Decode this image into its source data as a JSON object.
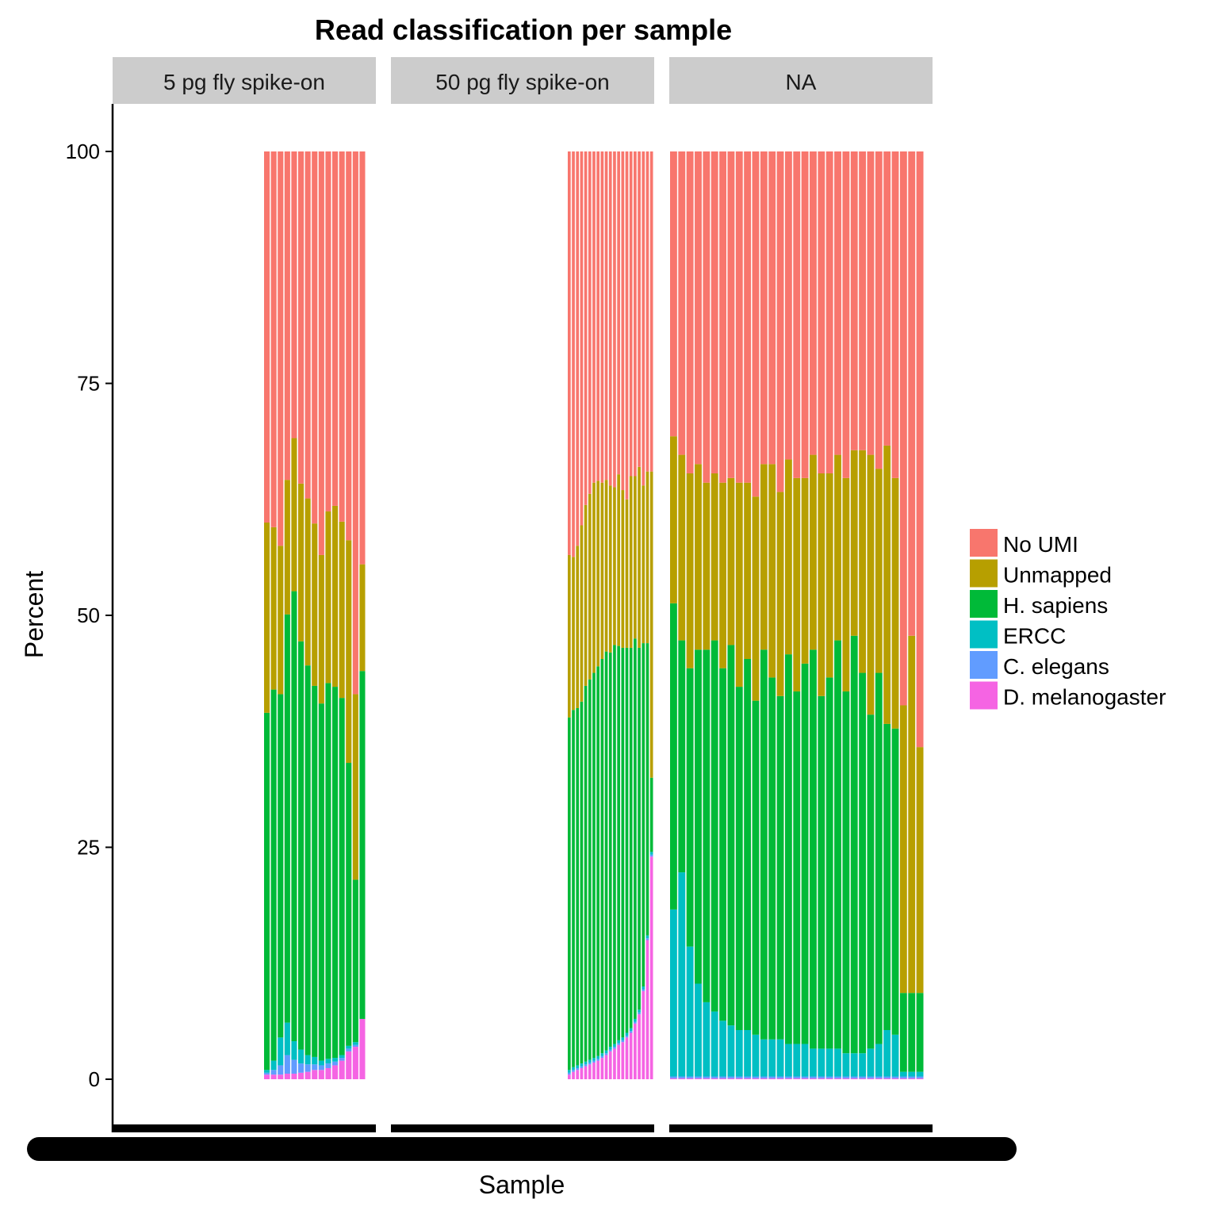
{
  "chart_data": {
    "type": "bar",
    "stacked": true,
    "title": "Read classification per sample",
    "xlabel": "Sample",
    "ylabel": "Percent",
    "ylim": [
      0,
      100
    ],
    "yticks": [
      0,
      25,
      50,
      75,
      100
    ],
    "grid": false,
    "legend_position": "right",
    "legend_title": "",
    "x_tick_labels_note": "overlapping, unreadable",
    "categories_stack_order": [
      "D. melanogaster",
      "C. elegans",
      "ERCC",
      "H. sapiens",
      "Unmapped",
      "No UMI"
    ],
    "legend": [
      {
        "name": "No UMI",
        "color": "#F8766D"
      },
      {
        "name": "Unmapped",
        "color": "#B79F00"
      },
      {
        "name": "H. sapiens",
        "color": "#00BA38"
      },
      {
        "name": "ERCC",
        "color": "#00BFC4"
      },
      {
        "name": "C. elegans",
        "color": "#619CFF"
      },
      {
        "name": "D. melanogaster",
        "color": "#F564E3"
      }
    ],
    "facets": [
      {
        "label": "5 pg fly spike-on",
        "samples": [
          {
            "dm": 0.5,
            "ce": 0.2,
            "ercc": 0.3,
            "hs": 38.5,
            "un": 20.5,
            "noumi": 40.0
          },
          {
            "dm": 0.5,
            "ce": 0.5,
            "ercc": 1.0,
            "hs": 40.0,
            "un": 17.5,
            "noumi": 40.5
          },
          {
            "dm": 0.5,
            "ce": 1.0,
            "ercc": 3.0,
            "hs": 37.0,
            "un": 16.0,
            "noumi": 42.5
          },
          {
            "dm": 0.6,
            "ce": 2.0,
            "ercc": 3.5,
            "hs": 44.0,
            "un": 14.5,
            "noumi": 35.4
          },
          {
            "dm": 0.6,
            "ce": 1.5,
            "ercc": 2.0,
            "hs": 48.5,
            "un": 16.5,
            "noumi": 30.9
          },
          {
            "dm": 0.7,
            "ce": 1.0,
            "ercc": 1.5,
            "hs": 44.0,
            "un": 17.0,
            "noumi": 35.8
          },
          {
            "dm": 0.8,
            "ce": 0.8,
            "ercc": 1.0,
            "hs": 42.0,
            "un": 18.0,
            "noumi": 37.4
          },
          {
            "dm": 1.0,
            "ce": 0.6,
            "ercc": 0.8,
            "hs": 40.0,
            "un": 17.5,
            "noumi": 40.1
          },
          {
            "dm": 1.0,
            "ce": 0.5,
            "ercc": 0.5,
            "hs": 38.5,
            "un": 16.0,
            "noumi": 43.5
          },
          {
            "dm": 1.2,
            "ce": 0.5,
            "ercc": 0.5,
            "hs": 40.5,
            "un": 18.5,
            "noumi": 38.8
          },
          {
            "dm": 1.5,
            "ce": 0.4,
            "ercc": 0.4,
            "hs": 40.0,
            "un": 19.5,
            "noumi": 38.2
          },
          {
            "dm": 2.0,
            "ce": 0.3,
            "ercc": 0.3,
            "hs": 38.5,
            "un": 19.0,
            "noumi": 39.9
          },
          {
            "dm": 3.0,
            "ce": 0.3,
            "ercc": 0.3,
            "hs": 30.5,
            "un": 24.0,
            "noumi": 41.9
          },
          {
            "dm": 3.5,
            "ce": 0.2,
            "ercc": 0.3,
            "hs": 17.5,
            "un": 20.0,
            "noumi": 58.5
          },
          {
            "dm": 6.5,
            "ce": 0.0,
            "ercc": 0.0,
            "hs": 37.5,
            "un": 11.5,
            "noumi": 44.5
          }
        ]
      },
      {
        "label": "50 pg fly spike-on",
        "samples": [
          {
            "dm": 0.5,
            "ce": 0.2,
            "ercc": 0.3,
            "hs": 38.0,
            "un": 17.5,
            "noumi": 43.5
          },
          {
            "dm": 0.8,
            "ce": 0.2,
            "ercc": 0.3,
            "hs": 38.5,
            "un": 16.5,
            "noumi": 43.7
          },
          {
            "dm": 1.0,
            "ce": 0.2,
            "ercc": 0.3,
            "hs": 38.5,
            "un": 17.5,
            "noumi": 42.5
          },
          {
            "dm": 1.2,
            "ce": 0.2,
            "ercc": 0.3,
            "hs": 39.0,
            "un": 19.0,
            "noumi": 40.3
          },
          {
            "dm": 1.4,
            "ce": 0.2,
            "ercc": 0.3,
            "hs": 40.5,
            "un": 19.5,
            "noumi": 38.1
          },
          {
            "dm": 1.6,
            "ce": 0.2,
            "ercc": 0.3,
            "hs": 41.0,
            "un": 20.0,
            "noumi": 36.9
          },
          {
            "dm": 1.8,
            "ce": 0.2,
            "ercc": 0.3,
            "hs": 41.5,
            "un": 20.5,
            "noumi": 35.7
          },
          {
            "dm": 2.0,
            "ce": 0.2,
            "ercc": 0.3,
            "hs": 42.0,
            "un": 20.0,
            "noumi": 35.5
          },
          {
            "dm": 2.3,
            "ce": 0.2,
            "ercc": 0.3,
            "hs": 42.5,
            "un": 19.0,
            "noumi": 35.7
          },
          {
            "dm": 2.6,
            "ce": 0.2,
            "ercc": 0.3,
            "hs": 43.0,
            "un": 18.5,
            "noumi": 35.4
          },
          {
            "dm": 3.0,
            "ce": 0.2,
            "ercc": 0.3,
            "hs": 42.5,
            "un": 18.0,
            "noumi": 36.0
          },
          {
            "dm": 3.3,
            "ce": 0.2,
            "ercc": 0.3,
            "hs": 43.0,
            "un": 17.0,
            "noumi": 36.2
          },
          {
            "dm": 3.7,
            "ce": 0.2,
            "ercc": 0.3,
            "hs": 42.5,
            "un": 18.5,
            "noumi": 34.8
          },
          {
            "dm": 4.0,
            "ce": 0.2,
            "ercc": 0.3,
            "hs": 42.0,
            "un": 17.0,
            "noumi": 36.5
          },
          {
            "dm": 4.5,
            "ce": 0.2,
            "ercc": 0.3,
            "hs": 41.5,
            "un": 16.0,
            "noumi": 37.5
          },
          {
            "dm": 5.0,
            "ce": 0.2,
            "ercc": 0.3,
            "hs": 41.0,
            "un": 18.5,
            "noumi": 35.0
          },
          {
            "dm": 6.0,
            "ce": 0.2,
            "ercc": 0.3,
            "hs": 41.0,
            "un": 17.5,
            "noumi": 35.0
          },
          {
            "dm": 7.0,
            "ce": 0.2,
            "ercc": 0.3,
            "hs": 39.0,
            "un": 19.5,
            "noumi": 34.0
          },
          {
            "dm": 9.5,
            "ce": 0.2,
            "ercc": 0.3,
            "hs": 37.0,
            "un": 17.0,
            "noumi": 36.0
          },
          {
            "dm": 15.0,
            "ce": 0.2,
            "ercc": 0.3,
            "hs": 31.5,
            "un": 18.5,
            "noumi": 34.5
          },
          {
            "dm": 24.0,
            "ce": 0.2,
            "ercc": 0.3,
            "hs": 8.0,
            "un": 33.0,
            "noumi": 34.5
          }
        ]
      },
      {
        "label": "NA",
        "samples": [
          {
            "dm": 0.1,
            "ce": 0.2,
            "ercc": 18.0,
            "hs": 33.0,
            "un": 18.0,
            "noumi": 30.7
          },
          {
            "dm": 0.1,
            "ce": 0.2,
            "ercc": 22.0,
            "hs": 25.0,
            "un": 20.0,
            "noumi": 32.7
          },
          {
            "dm": 0.1,
            "ce": 0.2,
            "ercc": 14.0,
            "hs": 30.0,
            "un": 21.0,
            "noumi": 34.7
          },
          {
            "dm": 0.1,
            "ce": 0.2,
            "ercc": 10.0,
            "hs": 36.0,
            "un": 20.0,
            "noumi": 33.7
          },
          {
            "dm": 0.1,
            "ce": 0.2,
            "ercc": 8.0,
            "hs": 38.0,
            "un": 18.0,
            "noumi": 35.7
          },
          {
            "dm": 0.1,
            "ce": 0.2,
            "ercc": 7.0,
            "hs": 40.0,
            "un": 18.0,
            "noumi": 34.7
          },
          {
            "dm": 0.1,
            "ce": 0.2,
            "ercc": 6.0,
            "hs": 38.0,
            "un": 20.0,
            "noumi": 35.7
          },
          {
            "dm": 0.1,
            "ce": 0.2,
            "ercc": 5.5,
            "hs": 41.0,
            "un": 18.0,
            "noumi": 35.2
          },
          {
            "dm": 0.1,
            "ce": 0.2,
            "ercc": 5.0,
            "hs": 37.0,
            "un": 22.0,
            "noumi": 35.7
          },
          {
            "dm": 0.1,
            "ce": 0.2,
            "ercc": 5.0,
            "hs": 40.0,
            "un": 19.0,
            "noumi": 35.7
          },
          {
            "dm": 0.1,
            "ce": 0.2,
            "ercc": 4.5,
            "hs": 36.0,
            "un": 22.0,
            "noumi": 37.2
          },
          {
            "dm": 0.1,
            "ce": 0.2,
            "ercc": 4.0,
            "hs": 42.0,
            "un": 20.0,
            "noumi": 33.7
          },
          {
            "dm": 0.1,
            "ce": 0.2,
            "ercc": 4.0,
            "hs": 39.0,
            "un": 23.0,
            "noumi": 33.7
          },
          {
            "dm": 0.1,
            "ce": 0.2,
            "ercc": 4.0,
            "hs": 37.0,
            "un": 22.0,
            "noumi": 36.7
          },
          {
            "dm": 0.1,
            "ce": 0.2,
            "ercc": 3.5,
            "hs": 42.0,
            "un": 21.0,
            "noumi": 33.2
          },
          {
            "dm": 0.1,
            "ce": 0.2,
            "ercc": 3.5,
            "hs": 38.0,
            "un": 23.0,
            "noumi": 35.2
          },
          {
            "dm": 0.1,
            "ce": 0.2,
            "ercc": 3.5,
            "hs": 41.0,
            "un": 20.0,
            "noumi": 35.2
          },
          {
            "dm": 0.1,
            "ce": 0.2,
            "ercc": 3.0,
            "hs": 43.0,
            "un": 21.0,
            "noumi": 32.7
          },
          {
            "dm": 0.1,
            "ce": 0.2,
            "ercc": 3.0,
            "hs": 38.0,
            "un": 24.0,
            "noumi": 34.7
          },
          {
            "dm": 0.1,
            "ce": 0.2,
            "ercc": 3.0,
            "hs": 40.0,
            "un": 22.0,
            "noumi": 34.7
          },
          {
            "dm": 0.1,
            "ce": 0.2,
            "ercc": 3.0,
            "hs": 44.0,
            "un": 20.0,
            "noumi": 32.7
          },
          {
            "dm": 0.1,
            "ce": 0.2,
            "ercc": 2.5,
            "hs": 39.0,
            "un": 23.0,
            "noumi": 35.2
          },
          {
            "dm": 0.1,
            "ce": 0.2,
            "ercc": 2.5,
            "hs": 45.0,
            "un": 20.0,
            "noumi": 32.2
          },
          {
            "dm": 0.1,
            "ce": 0.2,
            "ercc": 2.5,
            "hs": 41.0,
            "un": 24.0,
            "noumi": 32.2
          },
          {
            "dm": 0.1,
            "ce": 0.2,
            "ercc": 3.0,
            "hs": 36.0,
            "un": 28.0,
            "noumi": 32.7
          },
          {
            "dm": 0.1,
            "ce": 0.2,
            "ercc": 3.5,
            "hs": 40.0,
            "un": 22.0,
            "noumi": 34.2
          },
          {
            "dm": 0.1,
            "ce": 0.2,
            "ercc": 5.0,
            "hs": 33.0,
            "un": 30.0,
            "noumi": 31.7
          },
          {
            "dm": 0.1,
            "ce": 0.2,
            "ercc": 4.5,
            "hs": 33.0,
            "un": 27.0,
            "noumi": 35.2
          },
          {
            "dm": 0.1,
            "ce": 0.2,
            "ercc": 0.5,
            "hs": 8.5,
            "un": 31.0,
            "noumi": 59.7
          },
          {
            "dm": 0.1,
            "ce": 0.2,
            "ercc": 0.5,
            "hs": 8.5,
            "un": 38.5,
            "noumi": 52.2
          },
          {
            "dm": 0.1,
            "ce": 0.2,
            "ercc": 0.5,
            "hs": 8.5,
            "un": 26.5,
            "noumi": 64.2
          }
        ]
      }
    ]
  }
}
